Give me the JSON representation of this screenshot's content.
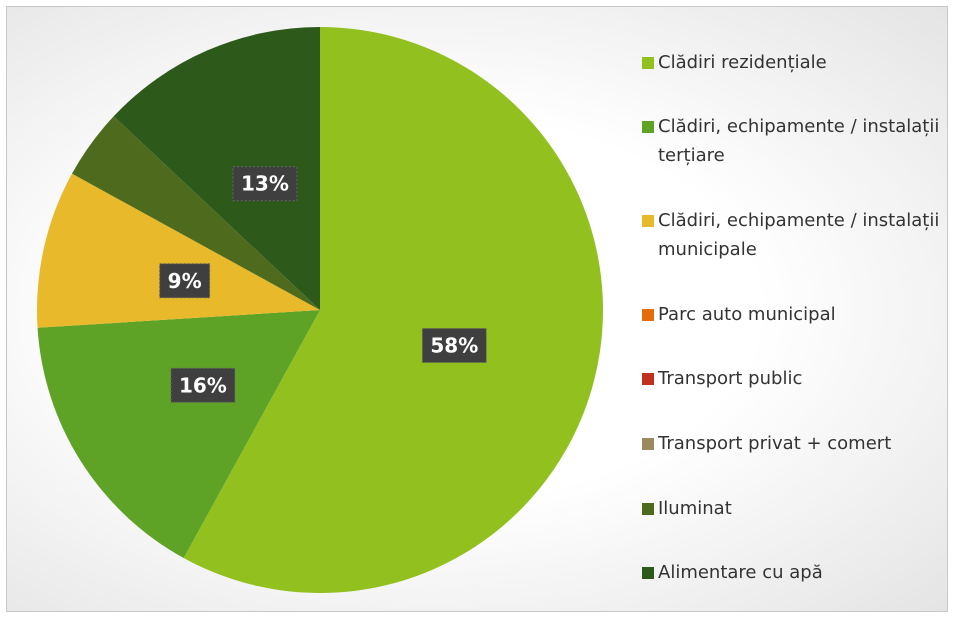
{
  "chart_data": {
    "type": "pie",
    "categories": [
      "Clădiri rezidențiale",
      "Clădiri, echipamente / instalații terțiare",
      "Clădiri, echipamente / instalații municipale",
      "Parc auto municipal",
      "Transport public",
      "Transport privat + comert",
      "Iluminat",
      "Alimentare cu apă"
    ],
    "values": [
      58,
      16,
      9,
      0,
      0,
      0,
      4,
      13
    ],
    "value_labels": [
      "58%",
      "16%",
      "9%",
      null,
      null,
      null,
      null,
      "13%"
    ],
    "colors": [
      "#92c01f",
      "#5ea226",
      "#e8b92a",
      "#e46c0a",
      "#c0321f",
      "#9a8a5e",
      "#4e6b1d",
      "#2d5a1b"
    ],
    "legend": "right"
  }
}
